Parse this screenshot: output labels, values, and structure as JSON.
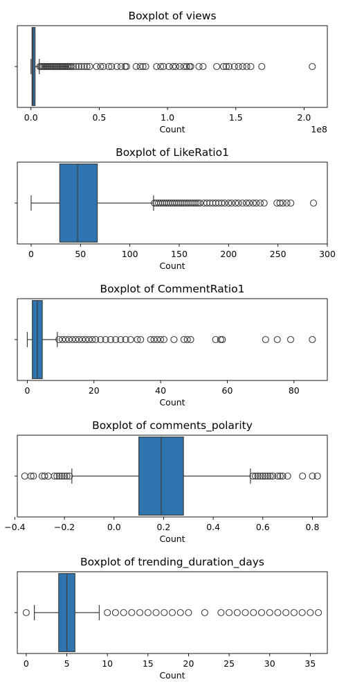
{
  "chart_data": [
    {
      "type": "box",
      "title": "Boxplot of views",
      "xlabel": "Count",
      "xlim": [
        -10000000,
        217000000
      ],
      "ticks": [
        0,
        50000000,
        100000000,
        150000000,
        200000000
      ],
      "tick_labels": [
        "0.0",
        "0.5",
        "1.0",
        "1.5",
        "2.0"
      ],
      "offset_text": "1e8",
      "whisker_low": 0,
      "q1": 800000,
      "median": 1500000,
      "q3": 3000000,
      "whisker_high": 6100000,
      "outliers": [
        6500000,
        7500000,
        8500000,
        9500000,
        10500000,
        11500000,
        12500000,
        13500000,
        14500000,
        15500000,
        16500000,
        17500000,
        18500000,
        19500000,
        20500000,
        21500000,
        22500000,
        23500000,
        24500000,
        25500000,
        26500000,
        27500000,
        28500000,
        29500000,
        31000000,
        33000000,
        35000000,
        37000000,
        39000000,
        41000000,
        43000000,
        48000000,
        51000000,
        53000000,
        57000000,
        59000000,
        63000000,
        66000000,
        69000000,
        70000000,
        77000000,
        80000000,
        82000000,
        84000000,
        92000000,
        95000000,
        97000000,
        101000000,
        104000000,
        106000000,
        109000000,
        112000000,
        114000000,
        116000000,
        117000000,
        123000000,
        126000000,
        136000000,
        141000000,
        143000000,
        145000000,
        149000000,
        152000000,
        155000000,
        158000000,
        161000000,
        169000000,
        206000000
      ]
    },
    {
      "type": "box",
      "title": "Boxplot of LikeRatio1",
      "xlabel": "Count",
      "xlim": [
        -14,
        300
      ],
      "ticks": [
        0,
        50,
        100,
        150,
        200,
        250,
        300
      ],
      "tick_labels": [
        "0",
        "50",
        "100",
        "150",
        "200",
        "250",
        "300"
      ],
      "offset_text": "",
      "whisker_low": 0,
      "q1": 29,
      "median": 47,
      "q3": 67,
      "whisker_high": 124,
      "outliers": [
        125,
        127,
        129,
        131,
        133,
        135,
        137,
        139,
        141,
        143,
        145,
        147,
        149,
        151,
        153,
        155,
        157,
        159,
        161,
        163,
        165,
        167,
        169,
        171,
        175,
        178,
        181,
        184,
        187,
        190,
        193,
        196,
        200,
        203,
        207,
        210,
        214,
        218,
        221,
        225,
        228,
        232,
        236,
        249,
        252,
        255,
        259,
        263,
        286
      ]
    },
    {
      "type": "box",
      "title": "Boxplot of CommentRatio1",
      "xlabel": "Count",
      "xlim": [
        -3,
        90
      ],
      "ticks": [
        0,
        20,
        40,
        60,
        80
      ],
      "tick_labels": [
        "0",
        "20",
        "40",
        "60",
        "80"
      ],
      "offset_text": "",
      "whisker_low": 0,
      "q1": 1.5,
      "median": 3,
      "q3": 4.5,
      "whisker_high": 9,
      "outliers": [
        9.5,
        10.5,
        11.5,
        12.5,
        13.5,
        14.5,
        15.5,
        16.5,
        17.5,
        18.5,
        19.5,
        20.5,
        22,
        23.5,
        25,
        26.5,
        28,
        29.5,
        31,
        33,
        34,
        37,
        38,
        39,
        40,
        41,
        44,
        47,
        48,
        49,
        56.5,
        58,
        58.5,
        71.5,
        75,
        79,
        85.5
      ]
    },
    {
      "type": "box",
      "title": "Boxplot of comments_polarity",
      "xlabel": "Count",
      "xlim": [
        -0.39,
        0.86
      ],
      "ticks": [
        -0.4,
        -0.2,
        0.0,
        0.2,
        0.4,
        0.6,
        0.8
      ],
      "tick_labels": [
        "−0.4",
        "−0.2",
        "0.0",
        "0.2",
        "0.4",
        "0.6",
        "0.8"
      ],
      "offset_text": "",
      "whisker_low": -0.17,
      "q1": 0.1,
      "median": 0.19,
      "q3": 0.28,
      "whisker_high": 0.55,
      "outliers": [
        -0.36,
        -0.335,
        -0.325,
        -0.29,
        -0.28,
        -0.265,
        -0.24,
        -0.23,
        -0.22,
        -0.21,
        -0.2,
        -0.19,
        -0.18,
        0.56,
        0.57,
        0.58,
        0.59,
        0.6,
        0.61,
        0.62,
        0.63,
        0.64,
        0.66,
        0.67,
        0.68,
        0.7,
        0.76,
        0.8,
        0.82
      ]
    },
    {
      "type": "box",
      "title": "Boxplot of trending_duration_days",
      "xlabel": "Count",
      "xlim": [
        -1.1,
        37.1
      ],
      "ticks": [
        0,
        5,
        10,
        15,
        20,
        25,
        30,
        35
      ],
      "tick_labels": [
        "0",
        "5",
        "10",
        "15",
        "20",
        "25",
        "30",
        "35"
      ],
      "offset_text": "",
      "whisker_low": 1,
      "q1": 4,
      "median": 5,
      "q3": 6,
      "whisker_high": 9,
      "outliers": [
        0,
        10,
        11,
        12,
        13,
        14,
        15,
        16,
        17,
        18,
        19,
        20,
        22,
        24,
        25,
        26,
        27,
        28,
        29,
        30,
        31,
        32,
        33,
        34,
        35,
        36
      ]
    }
  ]
}
